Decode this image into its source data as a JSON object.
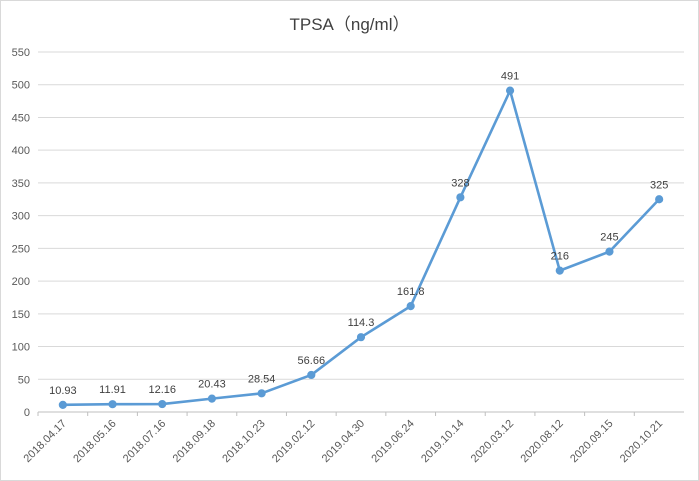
{
  "chart_data": {
    "type": "line",
    "title": "TPSA（ng/ml）",
    "xlabel": "",
    "ylabel": "",
    "ylim": [
      0,
      550
    ],
    "yticks": [
      0,
      50,
      100,
      150,
      200,
      250,
      300,
      350,
      400,
      450,
      500,
      550
    ],
    "grid": true,
    "legend": "none",
    "categories": [
      "2018.04.17",
      "2018.05.16",
      "2018.07.16",
      "2018.09.18",
      "2018.10.23",
      "2019.02.12",
      "2019.04.30",
      "2019.06.24",
      "2019.10.14",
      "2020.03.12",
      "2020.08.12",
      "2020.09.15",
      "2020.10.21"
    ],
    "series": [
      {
        "values": [
          10.93,
          11.91,
          12.16,
          20.43,
          28.54,
          56.66,
          114.3,
          161.8,
          328,
          491,
          216,
          245,
          325
        ],
        "labels": [
          "10.93",
          "11.91",
          "12.16",
          "20.43",
          "28.54",
          "56.66",
          "114.3",
          "161.8",
          "328",
          "491",
          "216",
          "245",
          "325"
        ],
        "color": "#5b9bd5"
      }
    ]
  }
}
